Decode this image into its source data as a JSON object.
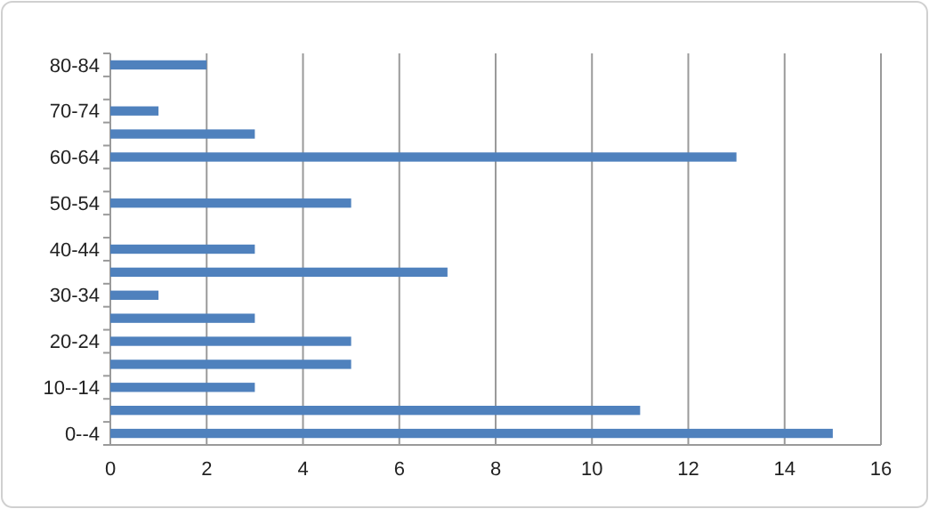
{
  "chart_data": {
    "type": "bar",
    "orientation": "horizontal",
    "categories": [
      "80-84",
      null,
      "70-74",
      null,
      "60-64",
      null,
      "50-54",
      null,
      "40-44",
      null,
      "30-34",
      null,
      "20-24",
      null,
      "10--14",
      null,
      "0--4"
    ],
    "values": [
      2,
      0,
      1,
      3,
      13,
      0,
      5,
      0,
      3,
      7,
      1,
      3,
      5,
      5,
      3,
      11,
      15
    ],
    "color": "#4f81bd",
    "xlim": [
      0,
      16
    ],
    "xticks": [
      0,
      2,
      4,
      6,
      8,
      10,
      12,
      14,
      16
    ],
    "grid": "x"
  }
}
